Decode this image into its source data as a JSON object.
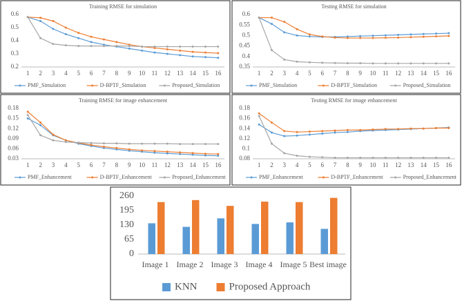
{
  "chart_data": [
    {
      "type": "line",
      "title": "Training RMSE for simulation",
      "categories": [
        "1",
        "2",
        "3",
        "4",
        "5",
        "6",
        "7",
        "8",
        "9",
        "10",
        "11",
        "12",
        "13",
        "14",
        "15",
        "16"
      ],
      "ylim": [
        0.2,
        0.6
      ],
      "yticks": [
        0.2,
        0.3,
        0.4,
        0.5,
        0.6
      ],
      "grid": false,
      "series": [
        {
          "name": "PMF_Simulation",
          "color": "#5b9bd5",
          "values": [
            0.58,
            0.55,
            0.49,
            0.45,
            0.42,
            0.39,
            0.37,
            0.355,
            0.34,
            0.325,
            0.31,
            0.3,
            0.29,
            0.28,
            0.275,
            0.27
          ]
        },
        {
          "name": "D-BPTF_Simulation",
          "color": "#ed7d31",
          "values": [
            0.58,
            0.575,
            0.55,
            0.5,
            0.46,
            0.43,
            0.41,
            0.39,
            0.37,
            0.355,
            0.345,
            0.335,
            0.325,
            0.315,
            0.31,
            0.305
          ]
        },
        {
          "name": "Proposed_Simulation",
          "color": "#a5a5a5",
          "values": [
            0.58,
            0.42,
            0.375,
            0.365,
            0.36,
            0.36,
            0.36,
            0.36,
            0.36,
            0.355,
            0.355,
            0.355,
            0.355,
            0.355,
            0.355,
            0.355
          ]
        }
      ]
    },
    {
      "type": "line",
      "title": "Testing RMSE for simulation",
      "categories": [
        "1",
        "2",
        "3",
        "4",
        "5",
        "6",
        "7",
        "8",
        "9",
        "10",
        "11",
        "12",
        "13",
        "14",
        "15",
        "16"
      ],
      "ylim": [
        0.35,
        0.6
      ],
      "yticks": [
        0.35,
        0.4,
        0.45,
        0.5,
        0.55,
        0.6
      ],
      "grid": false,
      "series": [
        {
          "name": "PMF_Simulation",
          "color": "#5b9bd5",
          "values": [
            0.585,
            0.555,
            0.515,
            0.5,
            0.495,
            0.493,
            0.493,
            0.495,
            0.497,
            0.499,
            0.501,
            0.503,
            0.505,
            0.507,
            0.509,
            0.511
          ]
        },
        {
          "name": "D-BPTF_Simulation",
          "color": "#ed7d31",
          "values": [
            0.585,
            0.585,
            0.565,
            0.53,
            0.505,
            0.495,
            0.49,
            0.488,
            0.488,
            0.488,
            0.489,
            0.49,
            0.492,
            0.494,
            0.496,
            0.498
          ]
        },
        {
          "name": "Proposed_Simulation",
          "color": "#a5a5a5",
          "values": [
            0.585,
            0.43,
            0.385,
            0.375,
            0.372,
            0.37,
            0.369,
            0.368,
            0.368,
            0.367,
            0.367,
            0.367,
            0.367,
            0.367,
            0.367,
            0.367
          ]
        }
      ]
    },
    {
      "type": "line",
      "title": "Training RMSE for image enhancement",
      "categories": [
        "1",
        "2",
        "3",
        "4",
        "5",
        "6",
        "7",
        "8",
        "9",
        "10",
        "11",
        "12",
        "13",
        "14",
        "15",
        "16"
      ],
      "ylim": [
        0.03,
        0.18
      ],
      "yticks": [
        0.03,
        0.06,
        0.09,
        0.12,
        0.15,
        0.18
      ],
      "grid": false,
      "series": [
        {
          "name": "PMF_Enhancement",
          "color": "#5b9bd5",
          "values": [
            0.15,
            0.13,
            0.1,
            0.085,
            0.075,
            0.068,
            0.062,
            0.058,
            0.054,
            0.051,
            0.048,
            0.046,
            0.044,
            0.042,
            0.04,
            0.039
          ]
        },
        {
          "name": "D-BPTF_Enhancement",
          "color": "#ed7d31",
          "values": [
            0.17,
            0.138,
            0.102,
            0.085,
            0.077,
            0.071,
            0.066,
            0.062,
            0.058,
            0.055,
            0.053,
            0.051,
            0.049,
            0.047,
            0.045,
            0.044
          ]
        },
        {
          "name": "Proposed_Enhancement",
          "color": "#a5a5a5",
          "values": [
            0.16,
            0.1,
            0.085,
            0.08,
            0.078,
            0.077,
            0.076,
            0.076,
            0.075,
            0.075,
            0.075,
            0.075,
            0.074,
            0.074,
            0.074,
            0.074
          ]
        }
      ]
    },
    {
      "type": "line",
      "title": "Testing RMSE for image enhancement",
      "categories": [
        "1",
        "2",
        "3",
        "4",
        "5",
        "6",
        "7",
        "8",
        "9",
        "10",
        "11",
        "12",
        "13",
        "14",
        "15",
        "16"
      ],
      "ylim": [
        0.08,
        0.18
      ],
      "yticks": [
        0.08,
        0.1,
        0.12,
        0.14,
        0.16,
        0.18
      ],
      "grid": false,
      "series": [
        {
          "name": "PMF_Enhancement",
          "color": "#5b9bd5",
          "values": [
            0.148,
            0.132,
            0.125,
            0.126,
            0.128,
            0.13,
            0.132,
            0.133,
            0.135,
            0.136,
            0.137,
            0.138,
            0.139,
            0.14,
            0.141,
            0.142
          ]
        },
        {
          "name": "D-BPTF_Enhancement",
          "color": "#ed7d31",
          "values": [
            0.17,
            0.152,
            0.135,
            0.133,
            0.134,
            0.135,
            0.136,
            0.137,
            0.137,
            0.138,
            0.139,
            0.139,
            0.14,
            0.14,
            0.141,
            0.141
          ]
        },
        {
          "name": "Proposed_Enhancement",
          "color": "#a5a5a5",
          "values": [
            0.165,
            0.11,
            0.091,
            0.086,
            0.084,
            0.083,
            0.082,
            0.082,
            0.082,
            0.082,
            0.082,
            0.082,
            0.082,
            0.082,
            0.082,
            0.082
          ]
        }
      ]
    },
    {
      "type": "bar",
      "categories": [
        "Image 1",
        "Image 2",
        "Image 3",
        "Image 4",
        "Image 5",
        "Best image"
      ],
      "ylim": [
        0,
        260
      ],
      "yticks": [
        0,
        65,
        130,
        195,
        260
      ],
      "grid": false,
      "series": [
        {
          "name": "KNN",
          "color": "#5b9bd5",
          "values": [
            138,
            122,
            160,
            135,
            142,
            113
          ]
        },
        {
          "name": "Proposed Approach",
          "color": "#ed7d31",
          "values": [
            233,
            242,
            216,
            235,
            233,
            252
          ]
        }
      ]
    }
  ]
}
